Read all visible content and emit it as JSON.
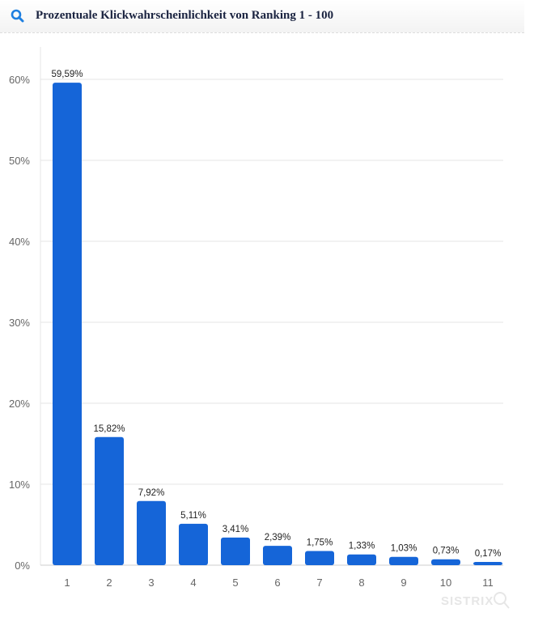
{
  "header": {
    "title": "Prozentuale Klickwahrscheinlichkeit von Ranking 1 - 100",
    "icon": "search-icon"
  },
  "watermark": "SISTRIX",
  "chart_data": {
    "type": "bar",
    "title": "",
    "xlabel": "",
    "ylabel": "",
    "categories": [
      "1",
      "2",
      "3",
      "4",
      "5",
      "6",
      "7",
      "8",
      "9",
      "10",
      "11"
    ],
    "values": [
      59.59,
      15.82,
      7.92,
      5.11,
      3.41,
      2.39,
      1.75,
      1.33,
      1.03,
      0.73,
      0.17
    ],
    "data_labels": [
      "59,59%",
      "15,82%",
      "7,92%",
      "5,11%",
      "3,41%",
      "2,39%",
      "1,75%",
      "1,33%",
      "1,03%",
      "0,73%",
      "0,17%"
    ],
    "ylim": [
      0,
      60
    ],
    "yticks": [
      0,
      10,
      20,
      30,
      40,
      50,
      60
    ],
    "ytick_labels": [
      "0%",
      "10%",
      "20%",
      "30%",
      "40%",
      "50%",
      "60%"
    ],
    "grid": true,
    "bar_color": "#1565d8"
  }
}
